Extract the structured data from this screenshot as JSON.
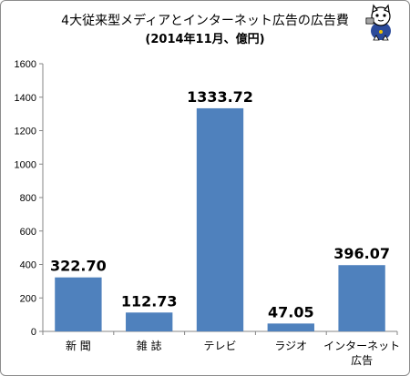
{
  "chart_data": {
    "type": "bar",
    "title": "4大従来型メディアとインターネット広告の広告費",
    "subtitle": "(2014年11月、億円)",
    "categories": [
      [
        "新 聞"
      ],
      [
        "雑 誌"
      ],
      [
        "テレビ"
      ],
      [
        "ラジオ"
      ],
      [
        "インターネット",
        "広告"
      ]
    ],
    "values": [
      322.7,
      112.73,
      1333.72,
      47.05,
      396.07
    ],
    "value_labels": [
      "322.70",
      "112.73",
      "1333.72",
      "47.05",
      "396.07"
    ],
    "yticks": [
      "0",
      "200",
      "400",
      "600",
      "800",
      "1000",
      "1200",
      "1400",
      "1600"
    ],
    "ylim": [
      0,
      1600
    ],
    "grid": false,
    "legend": "none",
    "bar_color": "#4f81bd"
  },
  "mascot_icon": "cat-mascot-icon"
}
